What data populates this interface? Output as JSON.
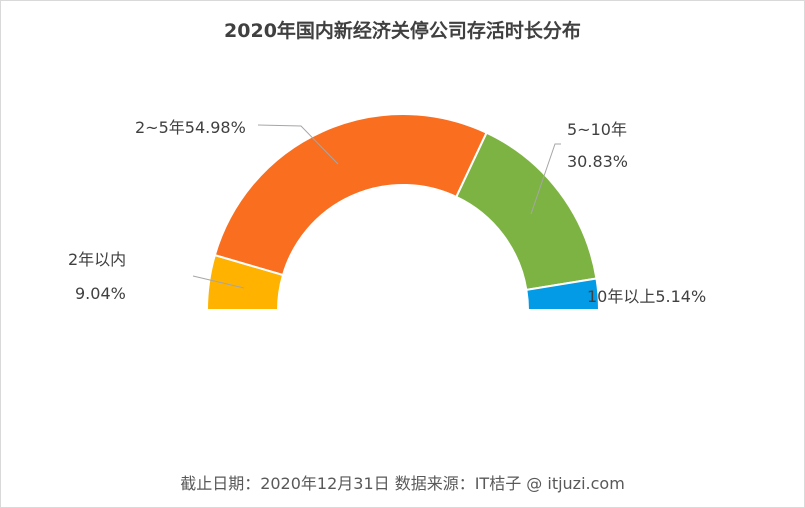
{
  "chart_data": {
    "type": "pie",
    "subtype": "half-donut",
    "title": "2020年国内新经济关停公司存活时长分布",
    "categories": [
      "2年以内",
      "2~5年",
      "5~10年",
      "10年以上"
    ],
    "values": [
      9.04,
      54.98,
      30.83,
      5.14
    ],
    "unit": "%",
    "colors": [
      "#FFB300",
      "#F96E1F",
      "#7DB343",
      "#039BE5"
    ],
    "labels": [
      {
        "line1": "2年以内",
        "line2": "9.04%"
      },
      {
        "line1": "2~5年54.98%",
        "line2": ""
      },
      {
        "line1": "5~10年",
        "line2": "30.83%"
      },
      {
        "line1": "10年以上5.14%",
        "line2": ""
      }
    ],
    "legend": "none"
  },
  "footer": "截止日期：2020年12月31日    数据来源：IT桔子 @ itjuzi.com"
}
